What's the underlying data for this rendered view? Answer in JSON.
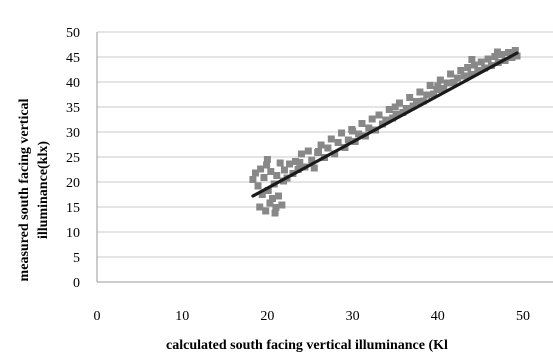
{
  "chart_data": {
    "type": "scatter",
    "xlabel": "calculated south facing vertical illuminance (Kl",
    "ylabel_line1": "measured south facing vertical",
    "ylabel_line2": "illuminance(klx)",
    "xlim": [
      0,
      50
    ],
    "ylim": [
      0,
      50
    ],
    "x_ticks": [
      0,
      10,
      20,
      30,
      40,
      50
    ],
    "y_ticks": [
      0,
      5,
      10,
      15,
      20,
      25,
      30,
      35,
      40,
      45,
      50
    ],
    "grid": true,
    "colors": {
      "points": "#888888",
      "trendline": "#1a1a1a",
      "grid": "#c8c8c8"
    },
    "points": [
      [
        18.3,
        20.5
      ],
      [
        18.6,
        21.8
      ],
      [
        18.9,
        19.2
      ],
      [
        19.2,
        22.6
      ],
      [
        19.4,
        17.5
      ],
      [
        19.6,
        20.9
      ],
      [
        19.8,
        14.2
      ],
      [
        19.9,
        23.4
      ],
      [
        20.1,
        18.3
      ],
      [
        20.3,
        15.8
      ],
      [
        20.4,
        22.1
      ],
      [
        20.6,
        16.7
      ],
      [
        20.8,
        19.6
      ],
      [
        21.0,
        14.9
      ],
      [
        21.1,
        21.3
      ],
      [
        21.3,
        17.2
      ],
      [
        21.5,
        23.8
      ],
      [
        21.7,
        15.4
      ],
      [
        21.9,
        20.2
      ],
      [
        20.0,
        24.5
      ],
      [
        19.1,
        15.0
      ],
      [
        20.9,
        13.8
      ],
      [
        22.0,
        22.4
      ],
      [
        22.3,
        20.8
      ],
      [
        22.6,
        23.6
      ],
      [
        23.0,
        21.7
      ],
      [
        23.3,
        24.1
      ],
      [
        23.6,
        22.5
      ],
      [
        24.0,
        25.6
      ],
      [
        24.4,
        23.0
      ],
      [
        24.8,
        26.2
      ],
      [
        25.2,
        24.4
      ],
      [
        25.5,
        22.8
      ],
      [
        25.9,
        25.9
      ],
      [
        26.3,
        27.4
      ],
      [
        26.7,
        24.9
      ],
      [
        27.1,
        26.8
      ],
      [
        27.5,
        28.6
      ],
      [
        27.9,
        25.6
      ],
      [
        28.3,
        27.9
      ],
      [
        28.7,
        29.8
      ],
      [
        29.1,
        26.9
      ],
      [
        29.5,
        28.4
      ],
      [
        29.9,
        30.5
      ],
      [
        30.3,
        28.1
      ],
      [
        30.7,
        29.6
      ],
      [
        31.1,
        31.7
      ],
      [
        31.5,
        29.2
      ],
      [
        31.9,
        30.8
      ],
      [
        32.3,
        32.6
      ],
      [
        32.7,
        30.4
      ],
      [
        33.1,
        33.4
      ],
      [
        33.5,
        31.6
      ],
      [
        33.9,
        32.4
      ],
      [
        34.3,
        34.5
      ],
      [
        34.7,
        32.8
      ],
      [
        35.1,
        33.5
      ],
      [
        35.5,
        35.8
      ],
      [
        35.9,
        33.9
      ],
      [
        36.3,
        34.7
      ],
      [
        36.7,
        36.9
      ],
      [
        37.1,
        35.2
      ],
      [
        37.5,
        36.1
      ],
      [
        37.9,
        38.0
      ],
      [
        38.3,
        36.2
      ],
      [
        38.7,
        37.4
      ],
      [
        39.1,
        39.3
      ],
      [
        39.5,
        37.6
      ],
      [
        39.9,
        38.5
      ],
      [
        40.3,
        40.4
      ],
      [
        40.7,
        38.7
      ],
      [
        41.1,
        39.8
      ],
      [
        41.5,
        41.6
      ],
      [
        41.9,
        39.9
      ],
      [
        42.3,
        40.8
      ],
      [
        42.7,
        42.3
      ],
      [
        43.1,
        41.2
      ],
      [
        43.5,
        42.9
      ],
      [
        43.9,
        41.5
      ],
      [
        44.3,
        43.4
      ],
      [
        44.7,
        42.3
      ],
      [
        45.1,
        44.0
      ],
      [
        45.5,
        42.8
      ],
      [
        45.9,
        44.6
      ],
      [
        46.3,
        43.3
      ],
      [
        46.7,
        45.1
      ],
      [
        47.1,
        43.9
      ],
      [
        47.5,
        45.5
      ],
      [
        47.9,
        44.3
      ],
      [
        48.3,
        45.9
      ],
      [
        48.7,
        44.9
      ],
      [
        49.1,
        46.3
      ],
      [
        49.3,
        45.2
      ],
      [
        35.0,
        35.0
      ],
      [
        30.0,
        30.2
      ],
      [
        26.0,
        26.1
      ],
      [
        44.0,
        44.5
      ],
      [
        40.0,
        39.2
      ],
      [
        23.8,
        23.9
      ],
      [
        47.0,
        46.0
      ]
    ],
    "trendline": {
      "x": [
        18.3,
        49.3
      ],
      "y": [
        17.2,
        45.8
      ]
    }
  }
}
